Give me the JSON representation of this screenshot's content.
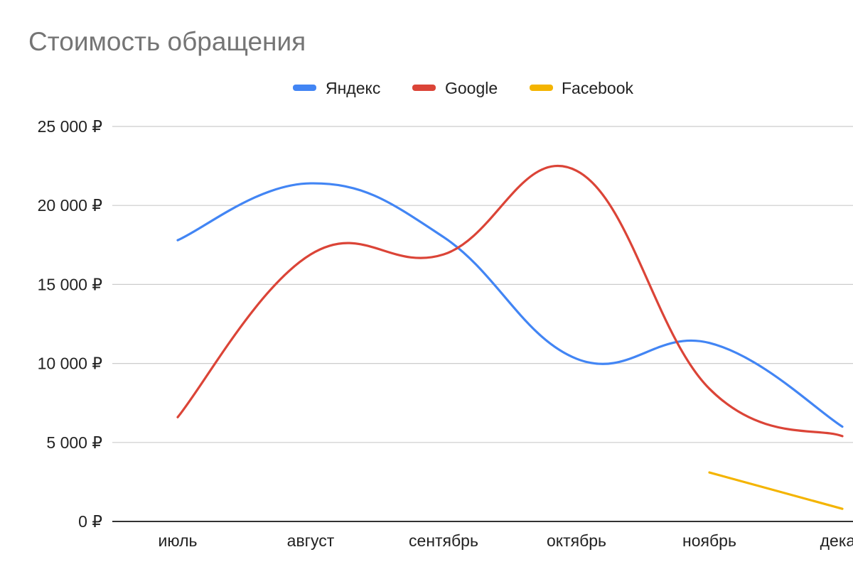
{
  "chart_data": {
    "type": "line",
    "title": "Стоимость обращения",
    "categories": [
      "июль",
      "август",
      "сентябрь",
      "октябрь",
      "ноябрь",
      "декаб"
    ],
    "series": [
      {
        "name": "Яндекс",
        "color": "#4285F4",
        "values": [
          17800,
          21400,
          18000,
          10300,
          11300,
          6000
        ]
      },
      {
        "name": "Google",
        "color": "#DB4437",
        "values": [
          6600,
          16900,
          16900,
          22200,
          8400,
          5400
        ]
      },
      {
        "name": "Facebook",
        "color": "#F4B400",
        "values": [
          null,
          null,
          null,
          null,
          3100,
          800
        ]
      }
    ],
    "y_ticks": [
      "0 ₽",
      "5 000 ₽",
      "10 000 ₽",
      "15 000 ₽",
      "20 000 ₽",
      "25 000 ₽"
    ],
    "y_tick_values": [
      0,
      5000,
      10000,
      15000,
      20000,
      25000
    ],
    "ylim": [
      0,
      25000
    ],
    "grid": true,
    "legend_position": "top-center",
    "xlabel": "",
    "ylabel": ""
  }
}
